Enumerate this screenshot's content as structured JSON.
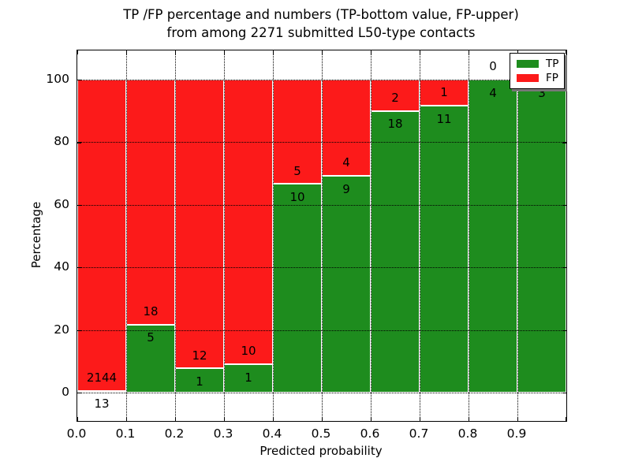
{
  "figure": {
    "title_line1": "TP /FP percentage and numbers (TP-bottom value, FP-upper)",
    "title_line2": "from among 2271 submitted L50-type contacts"
  },
  "chart_data": {
    "type": "bar",
    "stacked": true,
    "title": "TP /FP percentage and numbers (TP-bottom value, FP-upper) from among 2271 submitted L50-type contacts",
    "xlabel": "Predicted probability",
    "ylabel": "Percentage",
    "total_contacts": 2271,
    "bin_left_edges": [
      0.0,
      0.1,
      0.2,
      0.3,
      0.4,
      0.5,
      0.6,
      0.7,
      0.8,
      0.9
    ],
    "bin_width": 0.1,
    "series": [
      {
        "name": "TP",
        "color": "#1e8c1e",
        "counts": [
          13,
          5,
          1,
          1,
          10,
          9,
          18,
          11,
          4,
          3
        ]
      },
      {
        "name": "FP",
        "color": "#fc1a1a",
        "counts": [
          2144,
          18,
          12,
          10,
          5,
          4,
          2,
          1,
          0,
          0
        ]
      }
    ],
    "tp_percent": [
      0.6,
      21.7,
      7.7,
      9.1,
      66.7,
      69.2,
      90.0,
      91.7,
      100.0,
      100.0
    ],
    "bar_value_labels_note": "TP count printed below segment boundary, FP count above it",
    "x_tick_labels": [
      "0.0",
      "0.1",
      "0.2",
      "0.3",
      "0.4",
      "0.5",
      "0.6",
      "0.7",
      "0.8",
      "0.9"
    ],
    "y_tick_values": [
      0,
      20,
      40,
      60,
      80,
      100
    ],
    "xlim": [
      0.0,
      1.0
    ],
    "ylim": [
      -9,
      109
    ],
    "grid": {
      "style": "dotted",
      "color": "#000000",
      "on": true
    },
    "legend": {
      "position": "upper-right",
      "entries": [
        {
          "label": "TP",
          "color": "#1e8c1e"
        },
        {
          "label": "FP",
          "color": "#fc1a1a"
        }
      ]
    }
  }
}
